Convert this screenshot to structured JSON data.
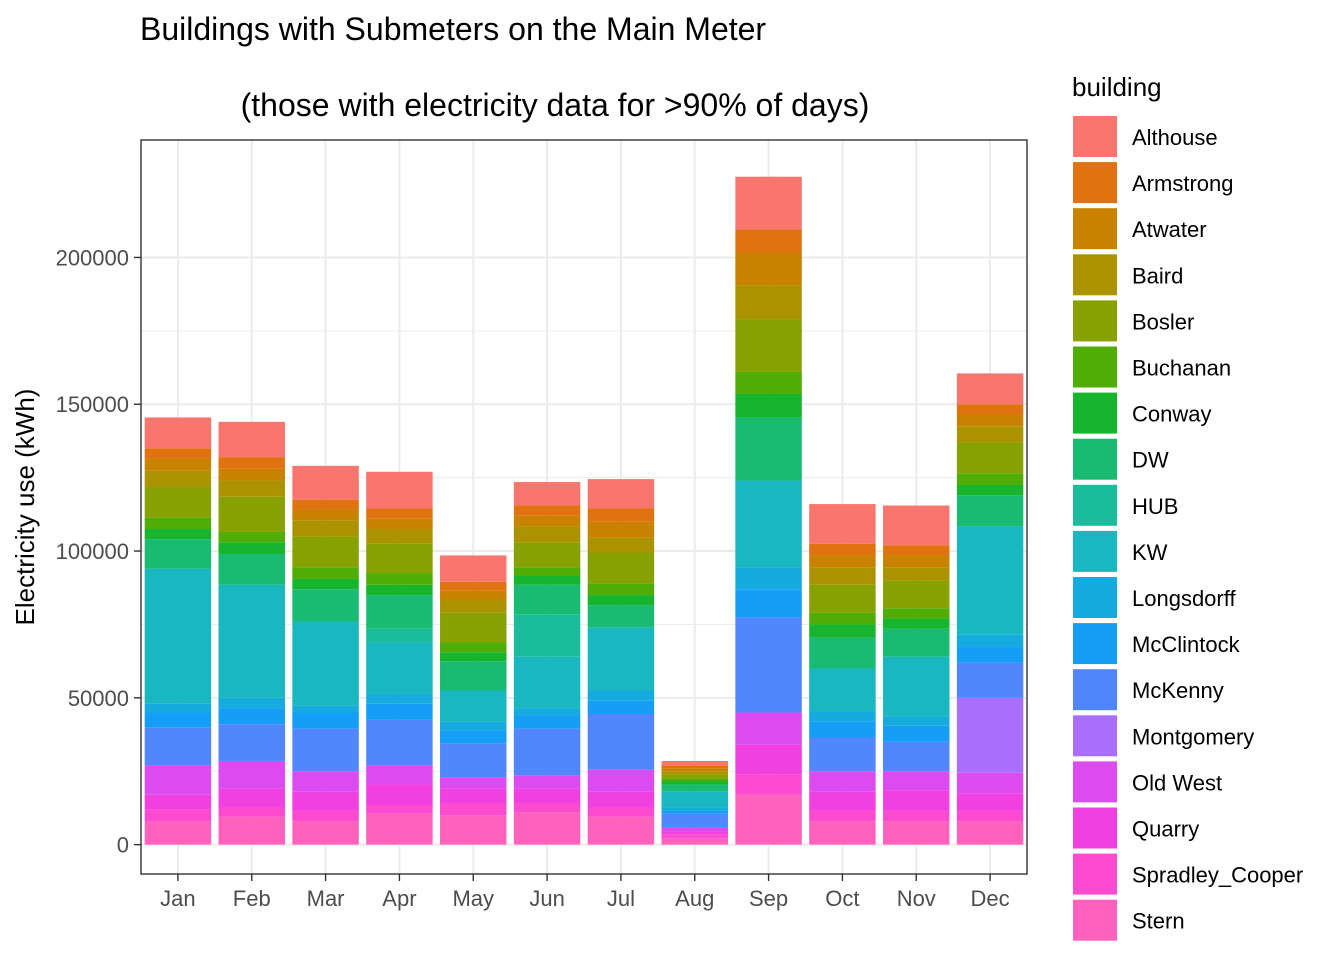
{
  "chart_data": {
    "type": "bar",
    "stacked": true,
    "title": "Buildings with Submeters on the Main Meter",
    "subtitle": "(those with electricity data for >90% of days)",
    "xlabel": "",
    "ylabel": "Electricity use (kWh)",
    "ylim": [
      -10000,
      240000
    ],
    "yticks": [
      0,
      50000,
      100000,
      150000,
      200000
    ],
    "grid": true,
    "legend_title": "building",
    "legend_position": "right",
    "categories": [
      "Jan",
      "Feb",
      "Mar",
      "Apr",
      "May",
      "Jun",
      "Jul",
      "Aug",
      "Sep",
      "Oct",
      "Nov",
      "Dec"
    ],
    "series": [
      {
        "name": "Stern",
        "color": "#FF62BC",
        "values": [
          8000,
          9500,
          8000,
          10500,
          10000,
          11000,
          9500,
          2000,
          17000,
          8000,
          8000,
          8000
        ]
      },
      {
        "name": "Spradley_Cooper",
        "color": "#FC4BD0",
        "values": [
          4000,
          3000,
          3500,
          3000,
          4000,
          3000,
          3000,
          1500,
          7000,
          3500,
          3500,
          3500
        ]
      },
      {
        "name": "Quarry",
        "color": "#F23FE0",
        "values": [
          5000,
          6500,
          6500,
          7000,
          5000,
          5000,
          5500,
          1000,
          10000,
          6500,
          7000,
          6000
        ]
      },
      {
        "name": "Old West",
        "color": "#DB4BF0",
        "values": [
          10000,
          9500,
          7000,
          6500,
          4000,
          4500,
          7500,
          1500,
          11000,
          7000,
          6500,
          7000
        ]
      },
      {
        "name": "Montgomery",
        "color": "#A970FF",
        "values": [
          0,
          0,
          0,
          0,
          0,
          0,
          0,
          0,
          0,
          0,
          0,
          25500
        ]
      },
      {
        "name": "McKenny",
        "color": "#5286FF",
        "values": [
          13000,
          12500,
          14500,
          15500,
          11500,
          16000,
          19000,
          4500,
          32500,
          11500,
          10000,
          12000
        ]
      },
      {
        "name": "McClintock",
        "color": "#149EF6",
        "values": [
          5000,
          5500,
          5500,
          5500,
          4500,
          4500,
          4500,
          1000,
          9500,
          5500,
          5500,
          5500
        ]
      },
      {
        "name": "Longsdorff",
        "color": "#15ABDF",
        "values": [
          3000,
          3500,
          2500,
          3500,
          3000,
          2500,
          3500,
          1000,
          7500,
          3500,
          3000,
          4000
        ]
      },
      {
        "name": "KW",
        "color": "#19B7C0",
        "values": [
          46000,
          38500,
          28500,
          17500,
          10500,
          17500,
          21500,
          5500,
          29500,
          14500,
          20500,
          37000
        ]
      },
      {
        "name": "HUB",
        "color": "#1BBC9C",
        "values": [
          0,
          0,
          0,
          4500,
          0,
          14500,
          0,
          0,
          0,
          0,
          0,
          0
        ]
      },
      {
        "name": "DW",
        "color": "#19BB73",
        "values": [
          10000,
          10500,
          11000,
          11500,
          10000,
          10000,
          7500,
          2500,
          21500,
          10500,
          9500,
          10500
        ]
      },
      {
        "name": "Conway",
        "color": "#17B52D",
        "values": [
          3500,
          4000,
          3500,
          3500,
          3000,
          3000,
          3500,
          1000,
          8000,
          4500,
          3500,
          3500
        ]
      },
      {
        "name": "Buchanan",
        "color": "#4FAD06",
        "values": [
          4000,
          3500,
          4000,
          4000,
          3500,
          3000,
          4000,
          1000,
          7500,
          4000,
          3500,
          4000
        ]
      },
      {
        "name": "Bosler",
        "color": "#87A200",
        "values": [
          10500,
          12000,
          10500,
          10000,
          10000,
          8500,
          10500,
          1500,
          18000,
          9500,
          9500,
          10500
        ]
      },
      {
        "name": "Baird",
        "color": "#AB9300",
        "values": [
          5500,
          5500,
          5500,
          5000,
          4500,
          5500,
          5000,
          1000,
          11500,
          6000,
          4500,
          5500
        ]
      },
      {
        "name": "Atwater",
        "color": "#C98200",
        "values": [
          4000,
          4000,
          3500,
          3500,
          3000,
          3500,
          5500,
          1000,
          11000,
          4000,
          4000,
          4000
        ]
      },
      {
        "name": "Armstrong",
        "color": "#E0730F",
        "values": [
          3500,
          4000,
          3500,
          3500,
          3000,
          3500,
          4500,
          1000,
          8000,
          4000,
          3500,
          3500
        ]
      },
      {
        "name": "Althouse",
        "color": "#F8766D",
        "values": [
          10500,
          12000,
          11500,
          12500,
          9000,
          8000,
          10000,
          1500,
          18000,
          13500,
          13500,
          10500
        ]
      }
    ]
  }
}
